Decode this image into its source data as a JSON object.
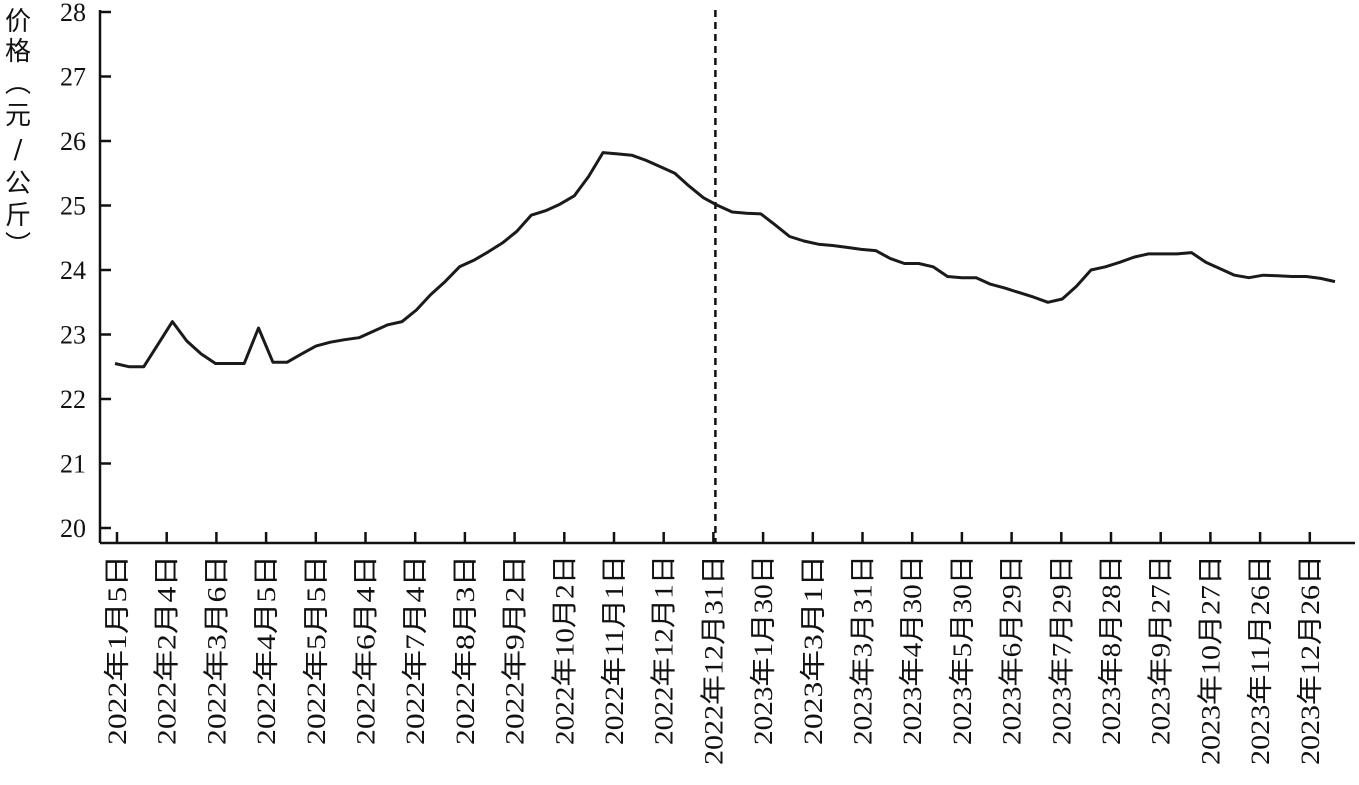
{
  "chart_data": {
    "type": "line",
    "title": "",
    "xlabel": "",
    "ylabel": "价格（元/公斤）",
    "ylim": [
      20,
      28
    ],
    "yticks": [
      20,
      21,
      22,
      23,
      24,
      25,
      26,
      27,
      28
    ],
    "grid": false,
    "legend": "none",
    "xtick_labels": [
      "2022年1月5日",
      "2022年2月4日",
      "2022年3月6日",
      "2022年4月5日",
      "2022年5月5日",
      "2022年6月4日",
      "2022年7月4日",
      "2022年8月3日",
      "2022年9月2日",
      "2022年10月2日",
      "2022年11月1日",
      "2022年12月1日",
      "2022年12月31日",
      "2023年1月30日",
      "2023年3月1日",
      "2023年3月31日",
      "2023年4月30日",
      "2023年5月30日",
      "2023年6月29日",
      "2023年7月29日",
      "2023年8月28日",
      "2023年9月27日",
      "2023年10月27日",
      "2023年11月26日",
      "2023年12月26日"
    ],
    "divider_after_label": "2022年12月31日",
    "line_color": "#1a1a1a",
    "series": [
      {
        "values": [
          22.55,
          22.5,
          22.5,
          22.85,
          23.2,
          22.9,
          22.7,
          22.55,
          22.55,
          22.55,
          23.1,
          22.57,
          22.57,
          22.7,
          22.82,
          22.88,
          22.92,
          22.95,
          23.05,
          23.15,
          23.2,
          23.38,
          23.62,
          23.82,
          24.05,
          24.15,
          24.28,
          24.42,
          24.6,
          24.85,
          24.92,
          25.02,
          25.15,
          25.45,
          25.82,
          25.8,
          25.78,
          25.7,
          25.6,
          25.5,
          25.3,
          25.12,
          25.0,
          24.9,
          24.88,
          24.87,
          24.7,
          24.52,
          24.45,
          24.4,
          24.38,
          24.35,
          24.32,
          24.3,
          24.18,
          24.1,
          24.1,
          24.05,
          23.9,
          23.88,
          23.88,
          23.78,
          23.72,
          23.65,
          23.58,
          23.5,
          23.55,
          23.75,
          24.0,
          24.05,
          24.12,
          24.2,
          24.25,
          24.25,
          24.25,
          24.27,
          24.12,
          24.02,
          23.92,
          23.88,
          23.92,
          23.91,
          23.9,
          23.9,
          23.87,
          23.82
        ]
      }
    ]
  }
}
